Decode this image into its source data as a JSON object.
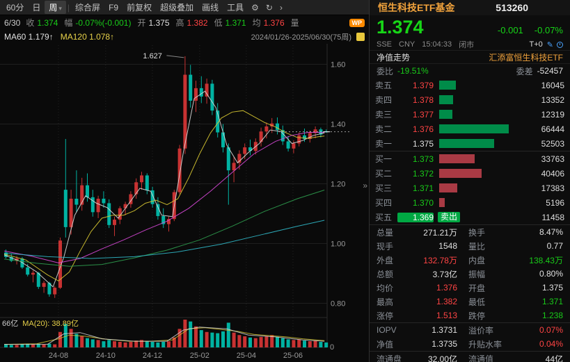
{
  "icons": {
    "collapse": "»",
    "caret": "▾",
    "pencil": "✎"
  },
  "toolbar": {
    "items": [
      {
        "key": "60min",
        "label": "60分"
      },
      {
        "key": "day",
        "label": "日"
      },
      {
        "key": "week",
        "label": "周",
        "active": true,
        "caret": true
      },
      {
        "sep": true
      },
      {
        "key": "composite-screen",
        "label": "综合屏"
      },
      {
        "key": "f9",
        "label": "F9"
      },
      {
        "key": "forward-adjust",
        "label": "前复权"
      },
      {
        "key": "super-overlay",
        "label": "超级叠加"
      },
      {
        "key": "draw-line",
        "label": "画线"
      },
      {
        "key": "tools",
        "label": "工具"
      }
    ],
    "icons": [
      {
        "key": "gear-icon",
        "glyph": "⚙"
      },
      {
        "key": "refresh-icon",
        "glyph": "↻"
      },
      {
        "key": "more-tools-icon",
        "glyph": "›"
      }
    ]
  },
  "info_bar": {
    "date": "6/30",
    "badge": "WP",
    "items": [
      {
        "label": "收",
        "value": "1.374",
        "c": "d"
      },
      {
        "label": "幅",
        "value": "-0.07%(-0.001)",
        "c": "d"
      },
      {
        "label": "开",
        "value": "1.375",
        "c": "w"
      },
      {
        "label": "高",
        "value": "1.382",
        "c": "u"
      },
      {
        "label": "低",
        "value": "1.371",
        "c": "d"
      },
      {
        "label": "均",
        "value": "1.376",
        "c": "u"
      },
      {
        "label": "量",
        "value": "",
        "c": "w"
      }
    ]
  },
  "ma_bar": {
    "items": [
      {
        "label": "MA60",
        "value": "1.179↑",
        "c": "w"
      },
      {
        "label": "MA120",
        "value": "1.078↑",
        "c": "y"
      }
    ],
    "range": "2024/01/26-2025/06/30(75周)"
  },
  "chart_data": {
    "type": "candlestick",
    "period": "weekly",
    "title": "恒生科技ETF基金 513260 周K线",
    "last": 1.374,
    "vol_max": 45,
    "y_ticks": [
      1.6,
      1.4,
      1.2,
      1.0,
      0.8
    ],
    "x_ticks": [
      {
        "label": "24-08",
        "i": 10
      },
      {
        "label": "24-10",
        "i": 18.7
      },
      {
        "label": "24-12",
        "i": 27.3
      },
      {
        "label": "25-02",
        "i": 36
      },
      {
        "label": "25-04",
        "i": 44.6
      },
      {
        "label": "25-06",
        "i": 53.2
      }
    ],
    "peak": {
      "i": 33,
      "price": 1.627,
      "label": "1.627"
    },
    "volume_label": "66亿",
    "volume_ma_label": "MA(20): 38.89亿",
    "zero_label": "0",
    "colors": {
      "up": "#c83232",
      "down": "#00b2a2"
    },
    "candles": [
      [
        0.97,
        0.98,
        0.95,
        0.955,
        5
      ],
      [
        0.955,
        0.965,
        0.938,
        0.942,
        4
      ],
      [
        0.942,
        0.958,
        0.93,
        0.95,
        4
      ],
      [
        0.95,
        0.955,
        0.915,
        0.92,
        5
      ],
      [
        0.92,
        0.932,
        0.89,
        0.896,
        6
      ],
      [
        0.896,
        0.91,
        0.87,
        0.902,
        5
      ],
      [
        0.902,
        0.905,
        0.848,
        0.855,
        6
      ],
      [
        0.855,
        0.875,
        0.835,
        0.868,
        5
      ],
      [
        0.868,
        0.872,
        0.822,
        0.83,
        6
      ],
      [
        0.83,
        0.858,
        0.818,
        0.852,
        5
      ],
      [
        0.852,
        1.02,
        0.848,
        1.01,
        25
      ],
      [
        1.18,
        1.35,
        1.02,
        1.055,
        38
      ],
      [
        1.055,
        1.18,
        1.03,
        1.15,
        30
      ],
      [
        1.15,
        1.245,
        1.105,
        1.13,
        22
      ],
      [
        1.13,
        1.22,
        1.11,
        1.195,
        18
      ],
      [
        1.195,
        1.235,
        1.14,
        1.155,
        15
      ],
      [
        1.155,
        1.18,
        1.09,
        1.105,
        13
      ],
      [
        1.105,
        1.16,
        1.085,
        1.15,
        12
      ],
      [
        1.15,
        1.175,
        1.12,
        1.135,
        10
      ],
      [
        1.135,
        1.148,
        1.052,
        1.062,
        12
      ],
      [
        1.062,
        1.09,
        1.025,
        1.08,
        10
      ],
      [
        1.08,
        1.125,
        1.065,
        1.118,
        9
      ],
      [
        1.118,
        1.14,
        1.095,
        1.132,
        8
      ],
      [
        1.132,
        1.175,
        1.12,
        1.165,
        9
      ],
      [
        1.165,
        1.218,
        1.15,
        1.205,
        11
      ],
      [
        1.205,
        1.24,
        1.18,
        1.228,
        12
      ],
      [
        1.228,
        1.235,
        1.165,
        1.178,
        10
      ],
      [
        1.178,
        1.19,
        1.12,
        1.132,
        9
      ],
      [
        1.132,
        1.155,
        1.08,
        1.092,
        8
      ],
      [
        1.092,
        1.118,
        1.052,
        1.065,
        9
      ],
      [
        1.065,
        1.09,
        1.04,
        1.082,
        10
      ],
      [
        1.082,
        1.18,
        1.075,
        1.172,
        16
      ],
      [
        1.172,
        1.33,
        1.165,
        1.318,
        30
      ],
      [
        1.318,
        1.627,
        1.3,
        1.565,
        45
      ],
      [
        1.565,
        1.598,
        1.455,
        1.478,
        42
      ],
      [
        1.478,
        1.545,
        1.44,
        1.52,
        34
      ],
      [
        1.52,
        1.56,
        1.47,
        1.492,
        28
      ],
      [
        1.492,
        1.552,
        1.468,
        1.535,
        25
      ],
      [
        1.535,
        1.548,
        1.43,
        1.445,
        24
      ],
      [
        1.445,
        1.47,
        1.355,
        1.372,
        23
      ],
      [
        1.372,
        1.4,
        1.305,
        1.322,
        26
      ],
      [
        1.322,
        1.335,
        1.13,
        1.245,
        40
      ],
      [
        1.245,
        1.29,
        1.205,
        1.27,
        24
      ],
      [
        1.27,
        1.312,
        1.248,
        1.3,
        20
      ],
      [
        1.3,
        1.335,
        1.282,
        1.322,
        18
      ],
      [
        1.322,
        1.348,
        1.295,
        1.31,
        16
      ],
      [
        1.31,
        1.352,
        1.298,
        1.34,
        15
      ],
      [
        1.34,
        1.388,
        1.325,
        1.375,
        17
      ],
      [
        1.375,
        1.405,
        1.352,
        1.392,
        18
      ],
      [
        1.392,
        1.42,
        1.37,
        1.402,
        20
      ],
      [
        1.402,
        1.422,
        1.365,
        1.38,
        17
      ],
      [
        1.38,
        1.395,
        1.33,
        1.342,
        15
      ],
      [
        1.342,
        1.36,
        1.308,
        1.318,
        13
      ],
      [
        1.318,
        1.345,
        1.302,
        1.335,
        12
      ],
      [
        1.335,
        1.372,
        1.325,
        1.362,
        13
      ],
      [
        1.362,
        1.385,
        1.34,
        1.35,
        11
      ],
      [
        1.35,
        1.378,
        1.338,
        1.37,
        10
      ],
      [
        1.37,
        1.392,
        1.352,
        1.382,
        11
      ],
      [
        1.382,
        1.388,
        1.355,
        1.365,
        9
      ],
      [
        1.375,
        1.382,
        1.371,
        1.374,
        8
      ]
    ],
    "ma_lines": [
      {
        "name": "ma-white",
        "color": "#dcdcdc",
        "points": [
          [
            0,
            0.962
          ],
          [
            3,
            0.94
          ],
          [
            6,
            0.905
          ],
          [
            9,
            0.855
          ],
          [
            11,
            0.955
          ],
          [
            13,
            1.095
          ],
          [
            15,
            1.16
          ],
          [
            17,
            1.135
          ],
          [
            19,
            1.12
          ],
          [
            21,
            1.085
          ],
          [
            23,
            1.135
          ],
          [
            25,
            1.185
          ],
          [
            27,
            1.175
          ],
          [
            29,
            1.095
          ],
          [
            31,
            1.09
          ],
          [
            33,
            1.305
          ],
          [
            35,
            1.485
          ],
          [
            37,
            1.51
          ],
          [
            39,
            1.455
          ],
          [
            41,
            1.33
          ],
          [
            43,
            1.27
          ],
          [
            45,
            1.305
          ],
          [
            47,
            1.335
          ],
          [
            49,
            1.38
          ],
          [
            51,
            1.375
          ],
          [
            53,
            1.335
          ],
          [
            55,
            1.345
          ],
          [
            57,
            1.362
          ],
          [
            59,
            1.37
          ]
        ]
      },
      {
        "name": "ma-yellow",
        "color": "#d8c832",
        "points": [
          [
            0,
            0.965
          ],
          [
            4,
            0.945
          ],
          [
            8,
            0.895
          ],
          [
            10,
            0.875
          ],
          [
            12,
            0.905
          ],
          [
            14,
            0.975
          ],
          [
            16,
            1.04
          ],
          [
            18,
            1.085
          ],
          [
            20,
            1.095
          ],
          [
            22,
            1.095
          ],
          [
            24,
            1.11
          ],
          [
            26,
            1.135
          ],
          [
            28,
            1.145
          ],
          [
            30,
            1.13
          ],
          [
            32,
            1.15
          ],
          [
            34,
            1.22
          ],
          [
            36,
            1.3
          ],
          [
            38,
            1.37
          ],
          [
            40,
            1.42
          ],
          [
            42,
            1.44
          ],
          [
            44,
            1.445
          ],
          [
            46,
            1.425
          ],
          [
            48,
            1.405
          ],
          [
            50,
            1.39
          ],
          [
            52,
            1.37
          ],
          [
            54,
            1.355
          ],
          [
            56,
            1.352
          ],
          [
            58,
            1.358
          ],
          [
            59,
            1.36
          ]
        ]
      },
      {
        "name": "ma-magenta",
        "color": "#d848d8",
        "points": [
          [
            0,
            0.975
          ],
          [
            5,
            0.958
          ],
          [
            10,
            0.935
          ],
          [
            14,
            0.95
          ],
          [
            18,
            0.982
          ],
          [
            22,
            1.012
          ],
          [
            26,
            1.045
          ],
          [
            30,
            1.075
          ],
          [
            34,
            1.118
          ],
          [
            38,
            1.175
          ],
          [
            42,
            1.238
          ],
          [
            46,
            1.3
          ],
          [
            50,
            1.342
          ],
          [
            53,
            1.362
          ],
          [
            56,
            1.372
          ],
          [
            59,
            1.372
          ]
        ]
      },
      {
        "name": "ma-green",
        "color": "#2f9e4f",
        "points": [
          [
            0,
            0.948
          ],
          [
            6,
            0.934
          ],
          [
            12,
            0.924
          ],
          [
            18,
            0.93
          ],
          [
            24,
            0.952
          ],
          [
            30,
            0.978
          ],
          [
            36,
            1.012
          ],
          [
            42,
            1.058
          ],
          [
            48,
            1.108
          ],
          [
            54,
            1.15
          ],
          [
            59,
            1.179
          ]
        ]
      },
      {
        "name": "ma-cyan",
        "color": "#30b8c8",
        "points": [
          [
            0,
            0.968
          ],
          [
            8,
            0.956
          ],
          [
            16,
            0.95
          ],
          [
            24,
            0.956
          ],
          [
            32,
            0.972
          ],
          [
            40,
            0.998
          ],
          [
            48,
            1.032
          ],
          [
            54,
            1.058
          ],
          [
            59,
            1.078
          ]
        ]
      }
    ],
    "vol_ma_lines": [
      {
        "color": "#d8c832",
        "points": [
          [
            0,
            5
          ],
          [
            6,
            6
          ],
          [
            10,
            14
          ],
          [
            12,
            20
          ],
          [
            15,
            18
          ],
          [
            19,
            13
          ],
          [
            23,
            10
          ],
          [
            27,
            10
          ],
          [
            31,
            12
          ],
          [
            34,
            30
          ],
          [
            37,
            32
          ],
          [
            40,
            29
          ],
          [
            43,
            26
          ],
          [
            46,
            21
          ],
          [
            49,
            19
          ],
          [
            52,
            17
          ],
          [
            55,
            14
          ],
          [
            59,
            11
          ]
        ]
      },
      {
        "color": "#dcdcdc",
        "points": [
          [
            0,
            5
          ],
          [
            8,
            5
          ],
          [
            11,
            22
          ],
          [
            14,
            24
          ],
          [
            18,
            14
          ],
          [
            24,
            10
          ],
          [
            30,
            10
          ],
          [
            33,
            28
          ],
          [
            36,
            33
          ],
          [
            41,
            30
          ],
          [
            45,
            20
          ],
          [
            50,
            17
          ],
          [
            55,
            12
          ],
          [
            59,
            10
          ]
        ]
      }
    ]
  },
  "panel": {
    "title": "恒生科技ETF基金",
    "code": "513260",
    "price": "1.374",
    "change": "-0.001",
    "change_pct": "-0.07%",
    "exchange": "SSE",
    "currency": "CNY",
    "time": "15:04:33",
    "status": "闭市",
    "tplus": "T+0",
    "nav_label": "净值走势",
    "fund_name": "汇添富恒生科技ETF",
    "weibi_label": "委比",
    "weibi": "-19.51%",
    "weicha_label": "委差",
    "weicha": "-52457",
    "asks": [
      {
        "label": "卖五",
        "price": "1.379",
        "c": "u",
        "vol": 16045
      },
      {
        "label": "卖四",
        "price": "1.378",
        "c": "u",
        "vol": 13352
      },
      {
        "label": "卖三",
        "price": "1.377",
        "c": "u",
        "vol": 12319
      },
      {
        "label": "卖二",
        "price": "1.376",
        "c": "u",
        "vol": 66444
      },
      {
        "label": "卖一",
        "price": "1.375",
        "c": "w",
        "vol": 52503
      }
    ],
    "bids": [
      {
        "label": "买一",
        "price": "1.373",
        "c": "d",
        "vol": 33763
      },
      {
        "label": "买二",
        "price": "1.372",
        "c": "d",
        "vol": 40406
      },
      {
        "label": "买三",
        "price": "1.371",
        "c": "d",
        "vol": 17383
      },
      {
        "label": "买四",
        "price": "1.370",
        "c": "d",
        "vol": 5196
      },
      {
        "label": "买五",
        "price": "1.369",
        "c": "d",
        "vol": 11458,
        "chip": true,
        "badge": "卖出"
      }
    ],
    "stats": [
      {
        "l1": "总量",
        "v1": "271.21万",
        "c1": "w",
        "l2": "换手",
        "v2": "8.47%",
        "c2": "w"
      },
      {
        "l1": "现手",
        "v1": "1548",
        "c1": "w",
        "l2": "量比",
        "v2": "0.77",
        "c2": "w"
      },
      {
        "l1": "外盘",
        "v1": "132.78万",
        "c1": "u",
        "l2": "内盘",
        "v2": "138.43万",
        "c2": "d"
      },
      {
        "l1": "总额",
        "v1": "3.73亿",
        "c1": "w",
        "l2": "振幅",
        "v2": "0.80%",
        "c2": "w"
      },
      {
        "l1": "均价",
        "v1": "1.376",
        "c1": "u",
        "l2": "开盘",
        "v2": "1.375",
        "c2": "w"
      },
      {
        "l1": "最高",
        "v1": "1.382",
        "c1": "u",
        "l2": "最低",
        "v2": "1.371",
        "c2": "d"
      },
      {
        "l1": "涨停",
        "v1": "1.513",
        "c1": "u",
        "l2": "跌停",
        "v2": "1.238",
        "c2": "d"
      }
    ],
    "iopv_rows": [
      {
        "l1": "IOPV",
        "v1": "1.3731",
        "c1": "w",
        "l2": "溢价率",
        "v2": "0.07%",
        "c2": "u"
      },
      {
        "l1": "净值",
        "v1": "1.3735",
        "c1": "w",
        "l2": "升贴水率",
        "v2": "0.04%",
        "c2": "u"
      }
    ],
    "cap_rows": [
      {
        "l1": "流通盘",
        "v1": "32.00亿",
        "c1": "w",
        "l2": "流通值",
        "v2": "44亿",
        "c2": "w"
      }
    ]
  }
}
